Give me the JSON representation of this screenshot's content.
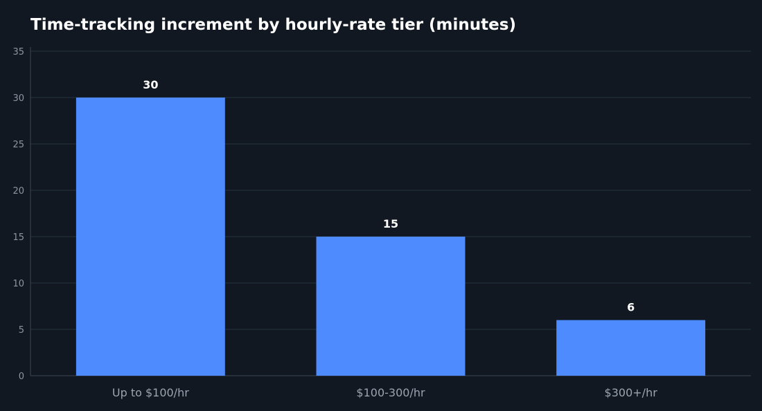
{
  "chart_data": {
    "type": "bar",
    "title": "Time-tracking increment by hourly-rate tier (minutes)",
    "xlabel": "",
    "ylabel": "",
    "categories": [
      "Up to $100/hr",
      "$100-300/hr",
      "$300+/hr"
    ],
    "values": [
      30,
      15,
      6
    ],
    "value_labels": [
      "30",
      "15",
      "6"
    ],
    "ylim": [
      0,
      35
    ],
    "yticks": [
      0,
      5,
      10,
      15,
      20,
      25,
      30,
      35
    ],
    "grid": true,
    "legend": "none",
    "colors": {
      "background": "#111821",
      "bar": "#4d8bff",
      "grid": "#1f2b36",
      "axis": "#3a4653",
      "title": "#ffffff",
      "tick_text": "#8c96a3",
      "category_text": "#9aa4b1",
      "value_text": "#ffffff"
    }
  }
}
